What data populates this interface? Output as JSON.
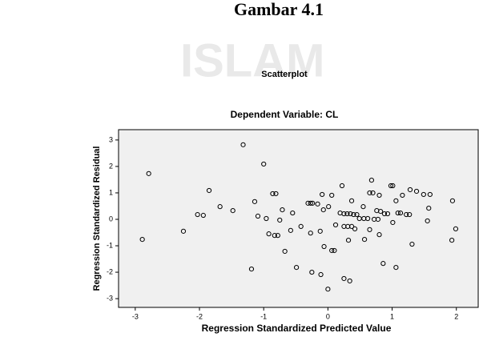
{
  "header": "Gambar 4.1",
  "watermark": "ISLAM",
  "chart_data": {
    "type": "scatter",
    "title": "Scatterplot",
    "subtitle": "Dependent Variable: CL",
    "x_label": "Regression Standardized Predicted Value",
    "y_label": "Regression Standardized Residual",
    "xlim": [
      -3.26,
      2.34
    ],
    "ylim": [
      -3.33,
      3.39
    ],
    "xticks": [
      -3,
      -2,
      -1,
      0,
      1,
      2
    ],
    "yticks": [
      -3,
      -2,
      -1,
      0,
      1,
      2,
      3
    ],
    "color": "#000000",
    "series": [
      {
        "x": [
          -2.89,
          -2.79,
          -2.25,
          -1.85,
          -2.03,
          -1.94,
          -1.68,
          -1.48,
          -1.32,
          -1.14,
          -1.19,
          -1.09,
          -1.0,
          -0.96,
          -0.86,
          -0.81,
          -0.92,
          -0.83,
          -0.78,
          -0.75,
          -0.71,
          -0.67,
          -0.58,
          -0.55,
          -0.49,
          -0.42,
          -0.31,
          -0.27,
          -0.24,
          -0.27,
          -0.25,
          -0.16,
          -0.12,
          -0.09,
          -0.07,
          -0.06,
          -0.11,
          0.0,
          0.01,
          0.06,
          0.06,
          0.1,
          0.12,
          0.19,
          0.25,
          0.3,
          0.35,
          0.4,
          0.45,
          0.22,
          0.25,
          0.31,
          0.37,
          0.25,
          0.34,
          0.32,
          0.37,
          0.42,
          0.49,
          0.56,
          0.62,
          0.55,
          0.57,
          0.65,
          0.7,
          0.65,
          0.68,
          0.72,
          0.78,
          0.76,
          0.8,
          0.8,
          0.82,
          0.86,
          0.88,
          0.93,
          0.98,
          1.01,
          1.01,
          1.06,
          1.06,
          1.09,
          1.13,
          1.16,
          1.22,
          1.27,
          1.28,
          1.38,
          1.31,
          1.49,
          1.59,
          1.57,
          1.55,
          1.94,
          1.93,
          1.99
        ],
        "values": [
          -0.76,
          1.73,
          -0.45,
          1.09,
          0.18,
          0.15,
          0.48,
          0.33,
          2.82,
          0.67,
          -1.88,
          0.12,
          2.09,
          0.03,
          0.97,
          0.97,
          -0.55,
          -0.61,
          -0.61,
          -0.03,
          0.36,
          -1.21,
          -0.42,
          0.24,
          -1.82,
          -0.27,
          0.61,
          0.61,
          0.61,
          -0.52,
          -2.0,
          0.58,
          -0.45,
          0.94,
          0.36,
          -1.03,
          -2.09,
          -2.64,
          0.48,
          0.91,
          -1.18,
          -1.18,
          -0.21,
          0.24,
          0.21,
          0.21,
          0.21,
          0.18,
          0.18,
          1.27,
          -0.27,
          -0.27,
          -0.27,
          -2.24,
          -2.33,
          -0.79,
          0.7,
          -0.36,
          0.03,
          0.03,
          0.03,
          0.48,
          -0.76,
          1.0,
          1.0,
          -0.39,
          1.48,
          0.0,
          0.0,
          0.33,
          0.91,
          -0.58,
          0.3,
          -1.67,
          0.21,
          0.21,
          1.27,
          1.27,
          -0.12,
          0.7,
          -1.82,
          0.24,
          0.24,
          0.91,
          0.18,
          0.18,
          1.12,
          1.06,
          -0.94,
          0.94,
          0.94,
          0.42,
          -0.06,
          0.7,
          -0.79,
          -0.36
        ]
      }
    ]
  }
}
